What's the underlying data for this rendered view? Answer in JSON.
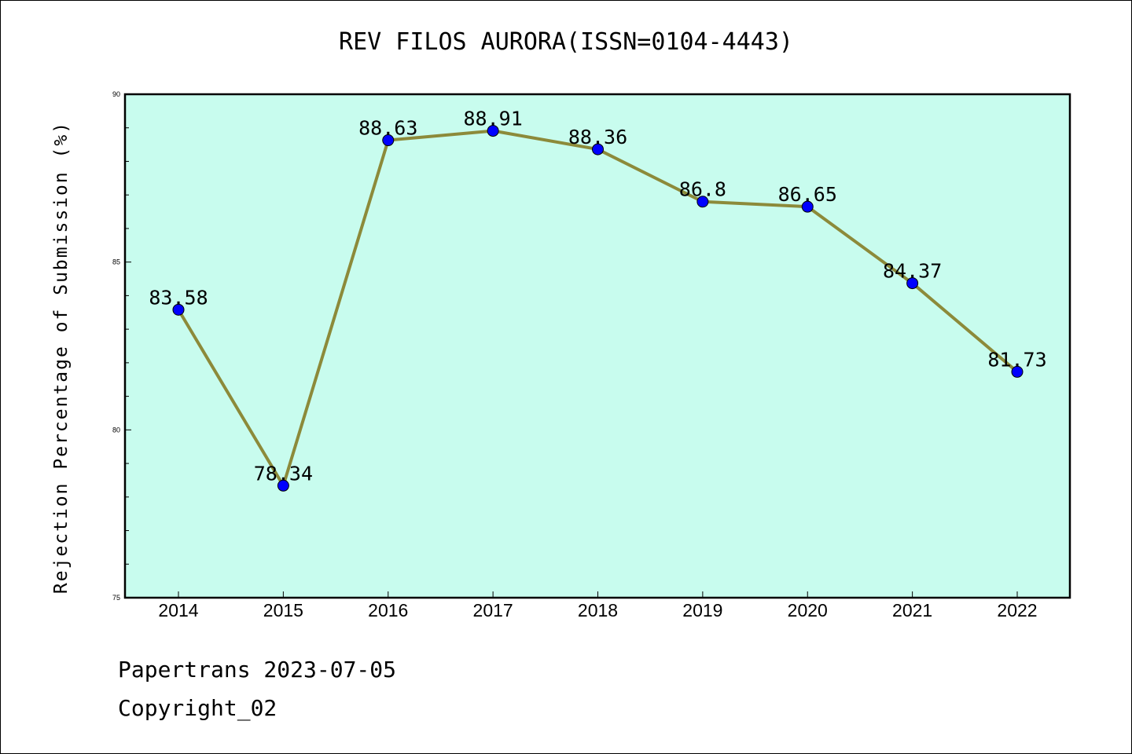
{
  "chart_data": {
    "type": "line",
    "title": "REV FILOS AURORA(ISSN=0104-4443)",
    "xlabel": "",
    "ylabel": "Rejection Percentage of Submission (%)",
    "categories": [
      "2014",
      "2015",
      "2016",
      "2017",
      "2018",
      "2019",
      "2020",
      "2021",
      "2022"
    ],
    "series": [
      {
        "values": [
          83.58,
          78.34,
          88.63,
          88.91,
          88.36,
          86.8,
          86.65,
          84.37,
          81.73
        ]
      }
    ],
    "data_labels": [
      "83.58",
      "78.34",
      "88.63",
      "88.91",
      "88.36",
      "86.8",
      "86.65",
      "84.37",
      "81.73"
    ],
    "ylim": [
      75,
      90
    ],
    "yticks": [
      "75",
      "80",
      "85",
      "90"
    ],
    "grid": false,
    "legend": "none",
    "colors": {
      "plot_background": "#c8fcee",
      "line": "#8c8a3a",
      "marker": "#0000ff"
    }
  },
  "footer": {
    "date_text": "Papertrans 2023-07-05",
    "copyright_text": "Copyright_02"
  }
}
